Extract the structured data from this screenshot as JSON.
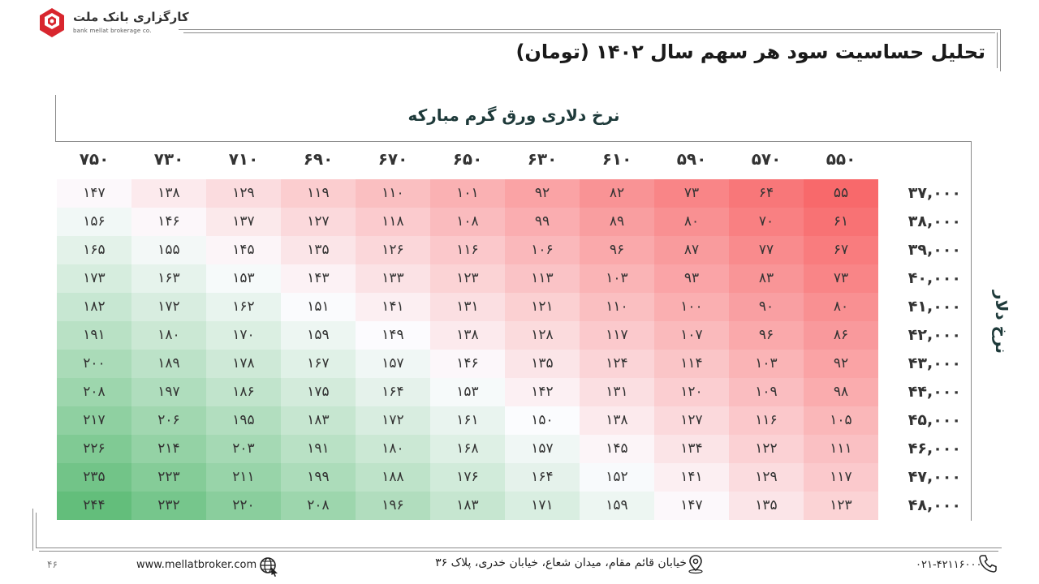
{
  "logo": {
    "name": "کارگزاری بانک ملت",
    "tagline": "bank mellat brokerage co."
  },
  "title": "تحلیل حساسیت سود هر سهم سال ۱۴۰۲ (تومان)",
  "column_axis_title": "نرخ دلاری ورق گرم مبارکه",
  "row_axis_title": "نرخ دلار",
  "columns": [
    "۵۵۰",
    "۵۷۰",
    "۵۹۰",
    "۶۱۰",
    "۶۳۰",
    "۶۵۰",
    "۶۷۰",
    "۶۹۰",
    "۷۱۰",
    "۷۳۰",
    "۷۵۰"
  ],
  "rows": [
    {
      "label": "۳۷,۰۰۰",
      "values": [
        "۵۵",
        "۶۴",
        "۷۳",
        "۸۲",
        "۹۲",
        "۱۰۱",
        "۱۱۰",
        "۱۱۹",
        "۱۲۹",
        "۱۳۸",
        "۱۴۷"
      ]
    },
    {
      "label": "۳۸,۰۰۰",
      "values": [
        "۶۱",
        "۷۰",
        "۸۰",
        "۸۹",
        "۹۹",
        "۱۰۸",
        "۱۱۸",
        "۱۲۷",
        "۱۳۷",
        "۱۴۶",
        "۱۵۶"
      ]
    },
    {
      "label": "۳۹,۰۰۰",
      "values": [
        "۶۷",
        "۷۷",
        "۸۷",
        "۹۶",
        "۱۰۶",
        "۱۱۶",
        "۱۲۶",
        "۱۳۵",
        "۱۴۵",
        "۱۵۵",
        "۱۶۵"
      ]
    },
    {
      "label": "۴۰,۰۰۰",
      "values": [
        "۷۳",
        "۸۳",
        "۹۳",
        "۱۰۳",
        "۱۱۳",
        "۱۲۳",
        "۱۳۳",
        "۱۴۳",
        "۱۵۳",
        "۱۶۳",
        "۱۷۳"
      ]
    },
    {
      "label": "۴۱,۰۰۰",
      "values": [
        "۸۰",
        "۹۰",
        "۱۰۰",
        "۱۱۰",
        "۱۲۱",
        "۱۳۱",
        "۱۴۱",
        "۱۵۱",
        "۱۶۲",
        "۱۷۲",
        "۱۸۲"
      ]
    },
    {
      "label": "۴۲,۰۰۰",
      "values": [
        "۸۶",
        "۹۶",
        "۱۰۷",
        "۱۱۷",
        "۱۲۸",
        "۱۳۸",
        "۱۴۹",
        "۱۵۹",
        "۱۷۰",
        "۱۸۰",
        "۱۹۱"
      ]
    },
    {
      "label": "۴۳,۰۰۰",
      "values": [
        "۹۲",
        "۱۰۳",
        "۱۱۴",
        "۱۲۴",
        "۱۳۵",
        "۱۴۶",
        "۱۵۷",
        "۱۶۷",
        "۱۷۸",
        "۱۸۹",
        "۲۰۰"
      ]
    },
    {
      "label": "۴۴,۰۰۰",
      "values": [
        "۹۸",
        "۱۰۹",
        "۱۲۰",
        "۱۳۱",
        "۱۴۲",
        "۱۵۳",
        "۱۶۴",
        "۱۷۵",
        "۱۸۶",
        "۱۹۷",
        "۲۰۸"
      ]
    },
    {
      "label": "۴۵,۰۰۰",
      "values": [
        "۱۰۵",
        "۱۱۶",
        "۱۲۷",
        "۱۳۸",
        "۱۵۰",
        "۱۶۱",
        "۱۷۲",
        "۱۸۳",
        "۱۹۵",
        "۲۰۶",
        "۲۱۷"
      ]
    },
    {
      "label": "۴۶,۰۰۰",
      "values": [
        "۱۱۱",
        "۱۲۲",
        "۱۳۴",
        "۱۴۵",
        "۱۵۷",
        "۱۶۸",
        "۱۸۰",
        "۱۹۱",
        "۲۰۳",
        "۲۱۴",
        "۲۲۶"
      ]
    },
    {
      "label": "۴۷,۰۰۰",
      "values": [
        "۱۱۷",
        "۱۲۹",
        "۱۴۱",
        "۱۵۲",
        "۱۶۴",
        "۱۷۶",
        "۱۸۸",
        "۱۹۹",
        "۲۱۱",
        "۲۲۳",
        "۲۳۵"
      ]
    },
    {
      "label": "۴۸,۰۰۰",
      "values": [
        "۱۲۳",
        "۱۳۵",
        "۱۴۷",
        "۱۵۹",
        "۱۷۱",
        "۱۸۳",
        "۱۹۶",
        "۲۰۸",
        "۲۲۰",
        "۲۳۲",
        "۲۴۴"
      ]
    }
  ],
  "heatmap": {
    "low_color": "#f8696b",
    "mid_color": "#fcfcff",
    "high_color": "#63be7b"
  },
  "footer": {
    "page_number": "۴۶",
    "website": "www.mellatbroker.com",
    "address": "خیابان قائم مقام، میدان شعاع، خیابان خدری، پلاک ۳۶",
    "phone": "۰۲۱-۴۲۱۱۶۰۰۰"
  },
  "icons": [
    "logo-icon",
    "globe-icon",
    "location-pin-icon",
    "phone-icon"
  ]
}
